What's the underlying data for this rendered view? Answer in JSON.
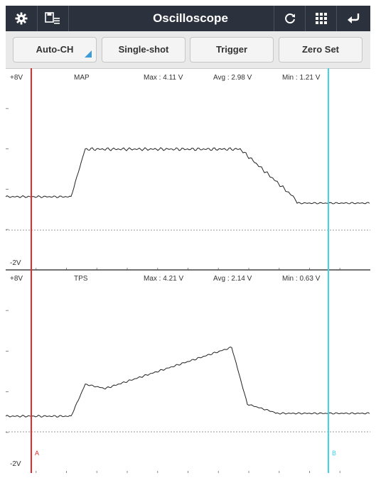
{
  "title": "Oscilloscope",
  "icons": {
    "settings": "gear-icon",
    "save": "save-list-icon",
    "refresh": "refresh-icon",
    "grid": "grid-icon",
    "back": "back-arrow-icon"
  },
  "buttons": {
    "auto_ch": "Auto-CH",
    "single_shot": "Single-shot",
    "trigger": "Trigger",
    "zero_set": "Zero Set"
  },
  "channels": [
    {
      "name": "MAP",
      "top_label": "+8V",
      "bottom_label": "-2V",
      "max": "Max : 4.11 V",
      "avg": "Avg : 2.98 V",
      "min": "Min : 1.21 V"
    },
    {
      "name": "TPS",
      "top_label": "+8V",
      "bottom_label": "-2V",
      "max": "Max : 4.21 V",
      "avg": "Avg : 2.14 V",
      "min": "Min : 0.63 V"
    }
  ],
  "cursors": {
    "a": {
      "label": "A",
      "color": "#e52a2a",
      "position": 0.07
    },
    "b": {
      "label": "B",
      "color": "#3fd3ee",
      "position": 0.885
    }
  },
  "colors": {
    "header": "#2b313d",
    "trace": "#222222",
    "accent": "#3d9bd6"
  }
}
